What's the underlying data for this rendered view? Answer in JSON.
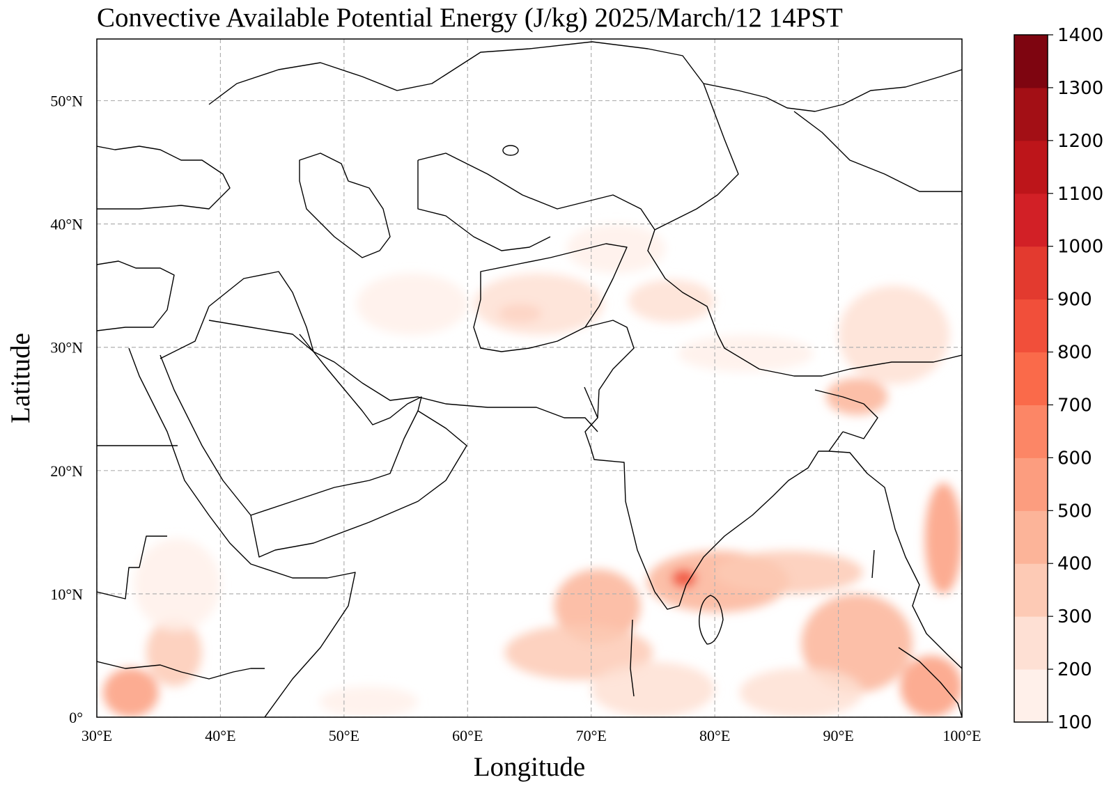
{
  "title": "Convective Available Potential Energy (J/kg)  2025/March/12 14PST",
  "axes": {
    "xlabel": "Longitude",
    "ylabel": "Latitude",
    "lon_range": [
      30,
      100
    ],
    "lat_range": [
      0,
      55
    ],
    "x_ticks": [
      {
        "value": 30,
        "label": "30°E"
      },
      {
        "value": 40,
        "label": "40°E"
      },
      {
        "value": 50,
        "label": "50°E"
      },
      {
        "value": 60,
        "label": "60°E"
      },
      {
        "value": 70,
        "label": "70°E"
      },
      {
        "value": 80,
        "label": "80°E"
      },
      {
        "value": 90,
        "label": "90°E"
      },
      {
        "value": 100,
        "label": "100°E"
      }
    ],
    "y_ticks": [
      {
        "value": 0,
        "label": "0°"
      },
      {
        "value": 10,
        "label": "10°N"
      },
      {
        "value": 20,
        "label": "20°N"
      },
      {
        "value": 30,
        "label": "30°N"
      },
      {
        "value": 40,
        "label": "40°N"
      },
      {
        "value": 50,
        "label": "50°N"
      }
    ],
    "grid": "dashed"
  },
  "colorbar": {
    "levels": [
      100,
      200,
      300,
      400,
      500,
      600,
      700,
      800,
      900,
      1000,
      1100,
      1200,
      1300,
      1400
    ],
    "colors": [
      "#fff0ea",
      "#fee0d4",
      "#fdcab5",
      "#fcb499",
      "#fc9d7f",
      "#fc8666",
      "#fa6a4a",
      "#f14f3a",
      "#e33a2f",
      "#d22026",
      "#bd151a",
      "#a30f15",
      "#7e0510"
    ]
  },
  "chart_data": {
    "type": "map",
    "variable": "Convective Available Potential Energy (J/kg)",
    "regions": [
      {
        "lon": [
          74.5,
          86
        ],
        "lat": [
          8.5,
          13.5
        ],
        "cape": 450
      },
      {
        "lon": [
          76.5,
          78.5
        ],
        "lat": [
          10.5,
          12
        ],
        "cape": 850
      },
      {
        "lon": [
          80,
          92
        ],
        "lat": [
          10,
          13.5
        ],
        "cape": 320
      },
      {
        "lon": [
          67,
          74
        ],
        "lat": [
          6,
          12
        ],
        "cape": 450
      },
      {
        "lon": [
          63,
          75
        ],
        "lat": [
          3,
          7.5
        ],
        "cape": 380
      },
      {
        "lon": [
          70,
          80
        ],
        "lat": [
          0,
          4.5
        ],
        "cape": 220
      },
      {
        "lon": [
          87,
          96
        ],
        "lat": [
          2,
          10
        ],
        "cape": 400
      },
      {
        "lon": [
          82,
          92
        ],
        "lat": [
          0,
          4
        ],
        "cape": 200
      },
      {
        "lon": [
          95,
          100
        ],
        "lat": [
          0,
          5
        ],
        "cape": 550
      },
      {
        "lon": [
          97,
          100
        ],
        "lat": [
          10,
          19
        ],
        "cape": 550
      },
      {
        "lon": [
          30.5,
          35
        ],
        "lat": [
          0,
          4
        ],
        "cape": 520
      },
      {
        "lon": [
          34,
          38.5
        ],
        "lat": [
          2.5,
          8
        ],
        "cape": 380
      },
      {
        "lon": [
          33,
          40
        ],
        "lat": [
          7,
          14.5
        ],
        "cape": 180
      },
      {
        "lon": [
          89,
          94
        ],
        "lat": [
          24.5,
          27.5
        ],
        "cape": 420
      },
      {
        "lon": [
          90,
          99
        ],
        "lat": [
          27,
          35
        ],
        "cape": 250
      },
      {
        "lon": [
          62.5,
          66
        ],
        "lat": [
          32,
          33.5
        ],
        "cape": 650
      },
      {
        "lon": [
          60.5,
          71
        ],
        "lat": [
          31,
          36
        ],
        "cape": 200
      },
      {
        "lon": [
          51,
          60
        ],
        "lat": [
          31,
          36
        ],
        "cape": 150
      },
      {
        "lon": [
          68,
          76
        ],
        "lat": [
          36,
          40
        ],
        "cape": 150
      },
      {
        "lon": [
          73,
          80
        ],
        "lat": [
          32,
          35.5
        ],
        "cape": 220
      },
      {
        "lon": [
          77,
          88
        ],
        "lat": [
          28,
          31
        ],
        "cape": 150
      },
      {
        "lon": [
          48,
          56
        ],
        "lat": [
          0,
          2.5
        ],
        "cape": 120
      }
    ]
  }
}
